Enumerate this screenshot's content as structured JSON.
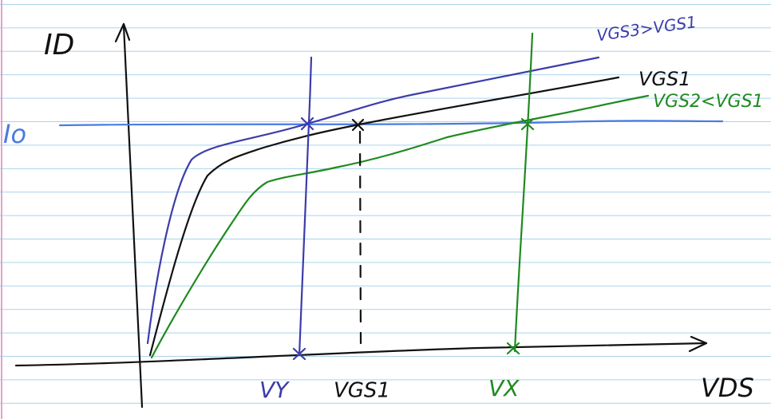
{
  "axes": {
    "y_label": "ID",
    "x_label": "VDS"
  },
  "reference_current": "Io",
  "curves": [
    {
      "label": "VGS3>VGS1"
    },
    {
      "label": "VGS1"
    },
    {
      "label": "VGS2<VGS1"
    }
  ],
  "markers": [
    {
      "label": "VY"
    },
    {
      "label": "VGS1"
    },
    {
      "label": "VX"
    }
  ]
}
